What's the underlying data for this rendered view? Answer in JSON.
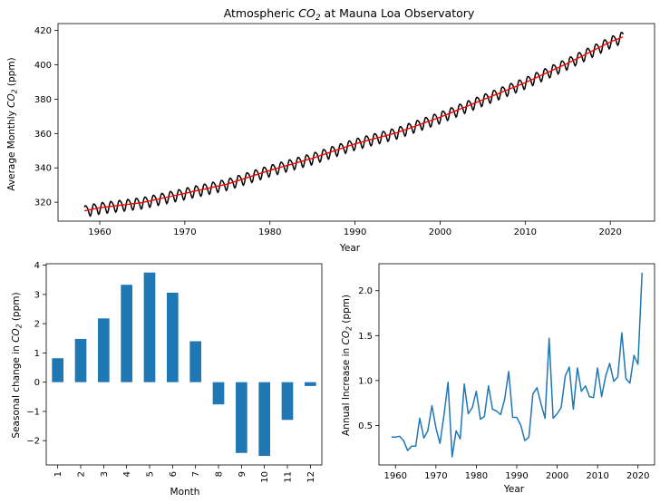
{
  "chart_data": [
    {
      "type": "line",
      "title": "Atmospheric CO2 at Mauna Loa Observatory",
      "title_parts": {
        "prefix": "Atmospheric ",
        "base": "CO",
        "sub": "2",
        "suffix": " at Mauna Loa Observatory"
      },
      "xlabel": "Year",
      "ylabel": "Average Monthly CO2 (ppm)",
      "ylabel_parts": {
        "prefix": "Average Monthly ",
        "base": "CO",
        "sub": "2",
        "suffix": " (ppm)"
      },
      "xlim": [
        1955.1,
        2025.2
      ],
      "ylim": [
        309.0,
        424.0
      ],
      "x_ticks": [
        1960,
        1970,
        1980,
        1990,
        2000,
        2010,
        2020
      ],
      "y_ticks": [
        320,
        340,
        360,
        380,
        400,
        420
      ],
      "grid": false,
      "series": [
        {
          "role": "monthly",
          "color": "#000000",
          "x": [
            1958.2,
            1960,
            1965,
            1970,
            1975,
            1980,
            1985,
            1990,
            1995,
            2000,
            2005,
            2010,
            2015,
            2020,
            2021.6
          ],
          "trend": [
            315.0,
            316.8,
            319.8,
            325.2,
            330.6,
            338.6,
            345.6,
            354.0,
            360.6,
            369.5,
            379.6,
            389.6,
            400.9,
            413.3,
            416.5
          ],
          "seasonal_amplitude_ppm": 3.2
        },
        {
          "role": "trend",
          "color": "#ff0000",
          "x": [
            1958.2,
            1960,
            1965,
            1970,
            1975,
            1980,
            1985,
            1990,
            1995,
            2000,
            2005,
            2010,
            2015,
            2020,
            2021.6
          ],
          "y": [
            315.0,
            316.8,
            319.8,
            325.2,
            330.6,
            338.6,
            345.6,
            354.0,
            360.6,
            369.5,
            379.6,
            389.6,
            400.9,
            413.3,
            416.5
          ]
        }
      ]
    },
    {
      "type": "bar",
      "xlabel": "Month",
      "ylabel": "Seasonal change in CO2 (ppm)",
      "ylabel_parts": {
        "prefix": "Seasonal change in ",
        "base": "CO",
        "sub": "2",
        "suffix": " (ppm)"
      },
      "categories": [
        "1",
        "2",
        "3",
        "4",
        "5",
        "6",
        "7",
        "8",
        "9",
        "10",
        "11",
        "12"
      ],
      "values": [
        0.82,
        1.48,
        2.18,
        3.33,
        3.75,
        3.06,
        1.4,
        -0.76,
        -2.42,
        -2.52,
        -1.29,
        -0.13
      ],
      "ylim": [
        -2.83,
        4.05
      ],
      "y_ticks": [
        -2,
        -1,
        0,
        1,
        2,
        3,
        4
      ],
      "y_tick_labels": [
        "−2",
        "−1",
        "0",
        "1",
        "2",
        "3",
        "4"
      ],
      "color": "#1f77b4",
      "grid": false
    },
    {
      "type": "line",
      "xlabel": "Year",
      "ylabel": "Annual Increase in CO2 (ppm)",
      "ylabel_parts": {
        "prefix": "Annual Increase in ",
        "base": "CO",
        "sub": "2",
        "suffix": " (ppm)"
      },
      "xlim": [
        1955.9,
        2024.1
      ],
      "ylim": [
        0.06,
        2.3
      ],
      "x_ticks": [
        1960,
        1970,
        1980,
        1990,
        2000,
        2010,
        2020
      ],
      "y_ticks": [
        0.5,
        1.0,
        1.5,
        2.0
      ],
      "y_tick_labels": [
        "0.5",
        "1.0",
        "1.5",
        "2.0"
      ],
      "color": "#1f77b4",
      "grid": false,
      "series": [
        {
          "x": [
            1959,
            1960,
            1961,
            1962,
            1963,
            1964,
            1965,
            1966,
            1967,
            1968,
            1969,
            1970,
            1971,
            1972,
            1973,
            1974,
            1975,
            1976,
            1977,
            1978,
            1979,
            1980,
            1981,
            1982,
            1983,
            1984,
            1985,
            1986,
            1987,
            1988,
            1989,
            1990,
            1991,
            1992,
            1993,
            1994,
            1995,
            1996,
            1997,
            1998,
            1999,
            2000,
            2001,
            2002,
            2003,
            2004,
            2005,
            2006,
            2007,
            2008,
            2009,
            2010,
            2011,
            2012,
            2013,
            2014,
            2015,
            2016,
            2017,
            2018,
            2019,
            2020,
            2021
          ],
          "y": [
            0.37,
            0.37,
            0.38,
            0.33,
            0.22,
            0.27,
            0.27,
            0.58,
            0.36,
            0.44,
            0.72,
            0.47,
            0.3,
            0.62,
            0.98,
            0.15,
            0.44,
            0.35,
            0.96,
            0.63,
            0.7,
            0.88,
            0.57,
            0.6,
            0.94,
            0.68,
            0.66,
            0.62,
            0.79,
            1.1,
            0.59,
            0.59,
            0.5,
            0.33,
            0.37,
            0.85,
            0.92,
            0.74,
            0.58,
            1.47,
            0.58,
            0.63,
            0.7,
            1.05,
            1.15,
            0.68,
            1.14,
            0.88,
            0.94,
            0.82,
            0.81,
            1.14,
            0.82,
            1.05,
            1.19,
            0.99,
            1.04,
            1.53,
            1.02,
            0.97,
            1.28,
            1.18,
            2.2
          ]
        }
      ]
    }
  ]
}
